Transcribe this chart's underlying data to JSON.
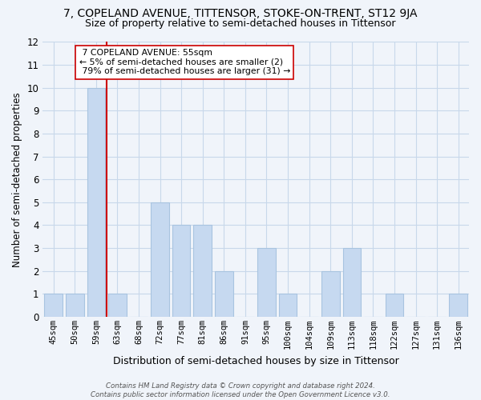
{
  "title": "7, COPELAND AVENUE, TITTENSOR, STOKE-ON-TRENT, ST12 9JA",
  "subtitle": "Size of property relative to semi-detached houses in Tittensor",
  "xlabel": "Distribution of semi-detached houses by size in Tittensor",
  "ylabel": "Number of semi-detached properties",
  "categories": [
    "45sqm",
    "50sqm",
    "59sqm",
    "63sqm",
    "68sqm",
    "72sqm",
    "77sqm",
    "81sqm",
    "86sqm",
    "91sqm",
    "95sqm",
    "100sqm",
    "104sqm",
    "109sqm",
    "113sqm",
    "118sqm",
    "122sqm",
    "127sqm",
    "131sqm",
    "136sqm"
  ],
  "values": [
    1,
    1,
    10,
    1,
    0,
    5,
    4,
    4,
    2,
    0,
    3,
    1,
    0,
    2,
    3,
    0,
    1,
    0,
    0,
    1
  ],
  "bar_color": "#c6d9f0",
  "bar_edge_color": "#a8c4e0",
  "property_line_x": 2.5,
  "property_sqm": 55,
  "pct_smaller": 5,
  "count_smaller": 2,
  "pct_larger": 79,
  "count_larger": 31,
  "ylim": [
    0,
    12
  ],
  "yticks": [
    0,
    1,
    2,
    3,
    4,
    5,
    6,
    7,
    8,
    9,
    10,
    11,
    12
  ],
  "background_color": "#f0f4fa",
  "grid_color": "#c8d8ea",
  "footer_line1": "Contains HM Land Registry data © Crown copyright and database right 2024.",
  "footer_line2": "Contains public sector information licensed under the Open Government Licence v3.0.",
  "title_fontsize": 10,
  "subtitle_fontsize": 9,
  "annotation_box_color": "#ffffff",
  "annotation_box_edge_color": "#cc0000"
}
